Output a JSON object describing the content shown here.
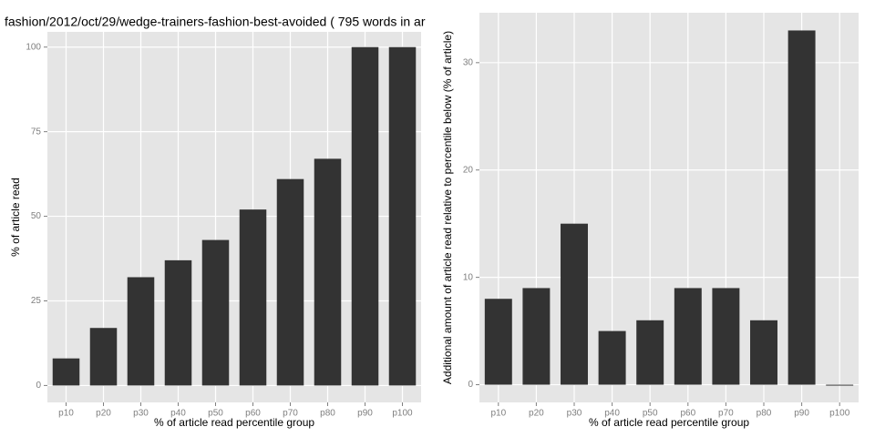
{
  "chart_data": [
    {
      "type": "bar",
      "title": "fashion/2012/oct/29/wedge-trainers-fashion-best-avoided ( 795 words in ar",
      "x_label": "% of article read percentile group",
      "y_label": "% of article read",
      "categories": [
        "p10",
        "p20",
        "p30",
        "p40",
        "p50",
        "p60",
        "p70",
        "p80",
        "p90",
        "p100"
      ],
      "values": [
        8,
        17,
        32,
        37,
        43,
        52,
        61,
        67,
        100,
        100
      ],
      "color": "#333333",
      "ylim": [
        -5,
        104.5
      ],
      "yticks": [
        0,
        25,
        50,
        75,
        100
      ],
      "grid": true
    },
    {
      "type": "bar",
      "x_label": "% of article read percentile group",
      "y_label": "Additional amount of article read relative to percentile below (% of article)",
      "categories": [
        "p10",
        "p20",
        "p30",
        "p40",
        "p50",
        "p60",
        "p70",
        "p80",
        "p90",
        "p100"
      ],
      "values": [
        8,
        9,
        15,
        5,
        6,
        9,
        9,
        6,
        33,
        0
      ],
      "color": "#333333",
      "ylim": [
        -1.65,
        34.65
      ],
      "yticks": [
        0,
        10,
        20,
        30
      ],
      "grid": true
    }
  ]
}
